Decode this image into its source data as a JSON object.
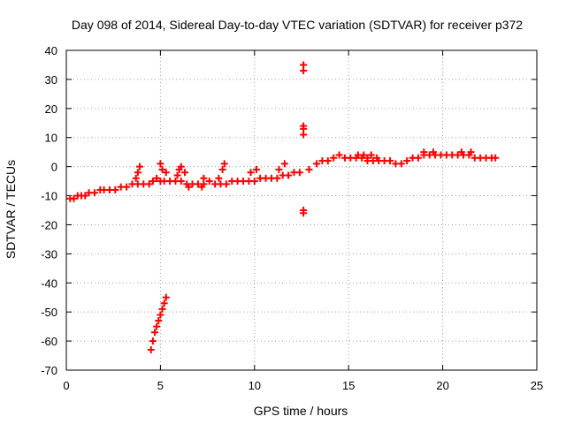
{
  "chart_data": {
    "type": "scatter",
    "title": "Day 098 of 2014, Sidereal Day-to-day VTEC variation (SDTVAR) for receiver p372",
    "xlabel": "GPS time / hours",
    "ylabel": "SDTVAR / TECUs",
    "xlim": [
      0,
      25
    ],
    "ylim": [
      -70,
      40
    ],
    "xticks": [
      "0",
      "5",
      "10",
      "15",
      "20",
      "25"
    ],
    "yticks": [
      "40",
      "30",
      "20",
      "10",
      "0",
      "-10",
      "-20",
      "-30",
      "-40",
      "-50",
      "-60",
      "-70"
    ],
    "grid": true,
    "marker": "plus",
    "color": "#ff0000",
    "series": [
      {
        "name": "SDTVAR",
        "x": [
          0.2,
          0.4,
          0.6,
          0.8,
          1.0,
          1.2,
          1.5,
          1.8,
          2.0,
          2.3,
          2.6,
          2.9,
          3.2,
          3.5,
          3.8,
          4.1,
          4.4,
          3.7,
          3.8,
          3.9,
          4.6,
          4.8,
          5.0,
          5.2,
          5.5,
          5.8,
          6.1,
          6.4,
          6.7,
          7.0,
          7.3,
          7.6,
          7.9,
          8.2,
          8.5,
          8.8,
          9.1,
          9.4,
          9.7,
          10.0,
          10.3,
          10.6,
          10.9,
          11.2,
          11.5,
          11.8,
          12.1,
          12.4,
          5.0,
          5.1,
          5.3,
          5.9,
          6.0,
          6.1,
          6.3,
          6.5,
          7.2,
          7.3,
          8.1,
          8.3,
          8.4,
          9.8,
          10.1,
          11.3,
          11.6,
          4.5,
          4.6,
          4.7,
          4.8,
          4.9,
          5.0,
          5.1,
          5.2,
          5.3,
          12.6,
          12.6,
          12.6,
          12.6,
          12.6,
          12.6,
          12.6,
          12.9,
          13.3,
          13.6,
          13.9,
          14.2,
          14.5,
          14.8,
          15.1,
          15.4,
          15.7,
          16.0,
          16.3,
          16.6,
          16.9,
          17.2,
          17.5,
          17.8,
          15.5,
          15.8,
          16.0,
          16.2,
          16.5,
          18.1,
          18.4,
          18.7,
          19.0,
          19.3,
          19.6,
          19.9,
          20.2,
          20.5,
          20.8,
          21.1,
          21.4,
          21.7,
          22.0,
          22.3,
          22.6,
          22.8,
          19.0,
          19.5,
          21.0,
          21.5
        ],
        "y": [
          -11,
          -11,
          -10,
          -10,
          -10,
          -9,
          -9,
          -8,
          -8,
          -8,
          -8,
          -7,
          -7,
          -6,
          -6,
          -6,
          -6,
          -4,
          -2,
          0,
          -5,
          -4,
          -5,
          -5,
          -5,
          -5,
          -5,
          -6,
          -6,
          -6,
          -6,
          -5,
          -6,
          -6,
          -6,
          -5,
          -5,
          -5,
          -5,
          -5,
          -4,
          -4,
          -4,
          -4,
          -3,
          -3,
          -2,
          -2,
          1,
          -1,
          -2,
          -3,
          -1,
          0,
          -2,
          -7,
          -7,
          -4,
          -4,
          -1,
          1,
          -2,
          -1,
          -1,
          1,
          -63,
          -60,
          -57,
          -55,
          -53,
          -51,
          -49,
          -47,
          -45,
          35,
          33,
          14,
          13,
          11,
          -15,
          -16,
          -1,
          1,
          2,
          2,
          3,
          4,
          3,
          3,
          3,
          3,
          2,
          2,
          2,
          2,
          2,
          1,
          1,
          4,
          4,
          3,
          4,
          3,
          2,
          3,
          3,
          4,
          4,
          4,
          4,
          4,
          4,
          4,
          4,
          4,
          3,
          3,
          3,
          3,
          3,
          5,
          5,
          5,
          5
        ]
      }
    ]
  }
}
